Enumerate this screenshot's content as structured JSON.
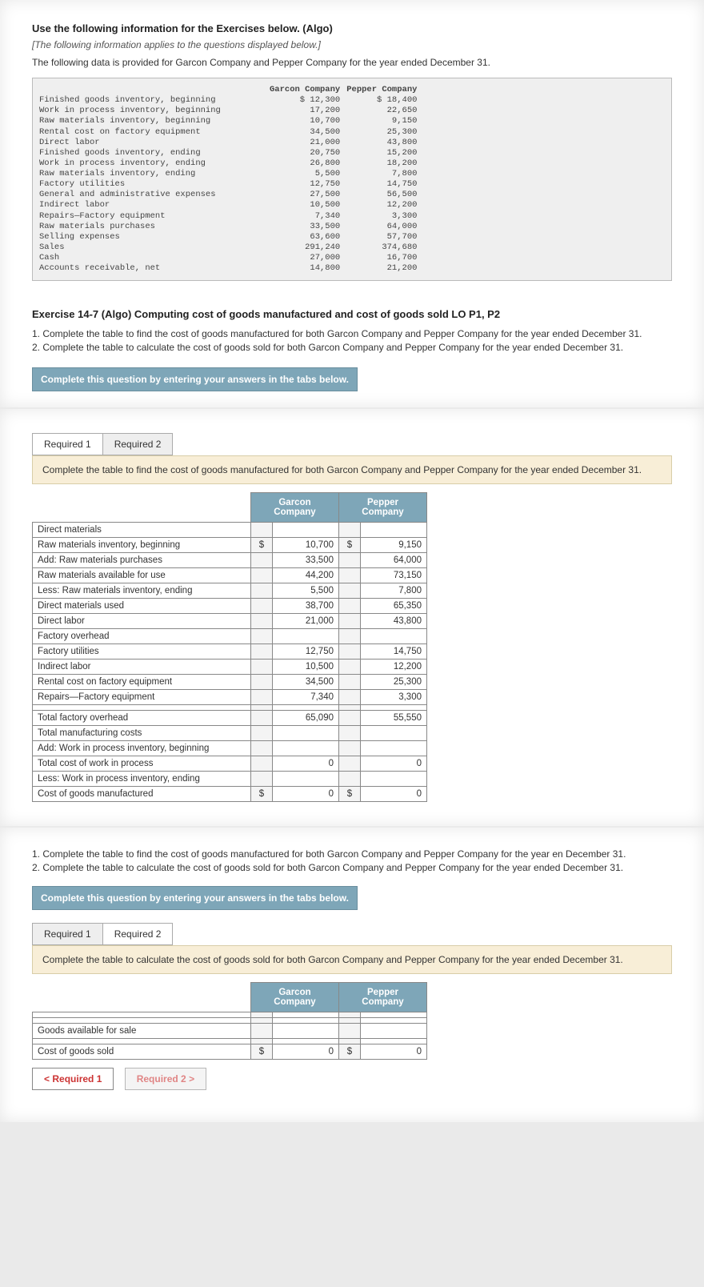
{
  "header": {
    "title": "Use the following information for the Exercises below. (Algo)",
    "note": "[The following information applies to the questions displayed below.]",
    "intro": "The following data is provided for Garcon Company and Pepper Company for the year ended December 31."
  },
  "mono": {
    "col1": "Garcon Company",
    "col2": "Pepper Company",
    "rows": [
      {
        "label": "Finished goods inventory, beginning",
        "g": "$ 12,300",
        "p": "$ 18,400"
      },
      {
        "label": "Work in process inventory, beginning",
        "g": "17,200",
        "p": "22,650"
      },
      {
        "label": "Raw materials inventory, beginning",
        "g": "10,700",
        "p": "9,150"
      },
      {
        "label": "Rental cost on factory equipment",
        "g": "34,500",
        "p": "25,300"
      },
      {
        "label": "Direct labor",
        "g": "21,000",
        "p": "43,800"
      },
      {
        "label": "Finished goods inventory, ending",
        "g": "20,750",
        "p": "15,200"
      },
      {
        "label": "Work in process inventory, ending",
        "g": "26,800",
        "p": "18,200"
      },
      {
        "label": "Raw materials inventory, ending",
        "g": "5,500",
        "p": "7,800"
      },
      {
        "label": "Factory utilities",
        "g": "12,750",
        "p": "14,750"
      },
      {
        "label": "General and administrative expenses",
        "g": "27,500",
        "p": "56,500"
      },
      {
        "label": "Indirect labor",
        "g": "10,500",
        "p": "12,200"
      },
      {
        "label": "Repairs—Factory equipment",
        "g": "7,340",
        "p": "3,300"
      },
      {
        "label": "Raw materials purchases",
        "g": "33,500",
        "p": "64,000"
      },
      {
        "label": "Selling expenses",
        "g": "63,600",
        "p": "57,700"
      },
      {
        "label": "Sales",
        "g": "291,240",
        "p": "374,680"
      },
      {
        "label": "Cash",
        "g": "27,000",
        "p": "16,700"
      },
      {
        "label": "Accounts receivable, net",
        "g": "14,800",
        "p": "21,200"
      }
    ]
  },
  "exercise": {
    "title": "Exercise 14-7 (Algo) Computing cost of goods manufactured and cost of goods sold LO P1, P2",
    "step1": "1. Complete the table to find the cost of goods manufactured for both Garcon Company and Pepper Company for the year ended December 31.",
    "step2": "2. Complete the table to calculate the cost of goods sold for both Garcon Company and Pepper Company for the year ended December 31.",
    "instr": "Complete this question by entering your answers in the tabs below."
  },
  "tabs": {
    "r1": "Required 1",
    "r2": "Required 2"
  },
  "panel1": {
    "text": "Complete the table to find the cost of goods manufactured for both Garcon Company and Pepper Company for the year ended December 31.",
    "colG": "Garcon Company",
    "colP": "Pepper Company",
    "rows": [
      {
        "lbl": "Direct materials",
        "g": "",
        "p": ""
      },
      {
        "lbl": "Raw materials inventory, beginning",
        "cur": "$",
        "g": "10,700",
        "p": "9,150",
        "pcur": "$"
      },
      {
        "lbl": "Add: Raw materials purchases",
        "g": "33,500",
        "p": "64,000"
      },
      {
        "lbl": "Raw materials available for use",
        "g": "44,200",
        "p": "73,150"
      },
      {
        "lbl": "Less: Raw materials inventory, ending",
        "g": "5,500",
        "p": "7,800"
      },
      {
        "lbl": "Direct materials used",
        "g": "38,700",
        "p": "65,350"
      },
      {
        "lbl": "Direct labor",
        "g": "21,000",
        "p": "43,800"
      },
      {
        "lbl": "Factory overhead",
        "g": "",
        "p": ""
      },
      {
        "lbl": "Factory utilities",
        "g": "12,750",
        "p": "14,750"
      },
      {
        "lbl": "Indirect labor",
        "g": "10,500",
        "p": "12,200"
      },
      {
        "lbl": "Rental cost on factory equipment",
        "g": "34,500",
        "p": "25,300"
      },
      {
        "lbl": "Repairs—Factory equipment",
        "g": "7,340",
        "p": "3,300"
      },
      {
        "lbl": "",
        "g": "",
        "p": ""
      },
      {
        "lbl": "Total factory overhead",
        "g": "65,090",
        "p": "55,550"
      },
      {
        "lbl": "Total manufacturing costs",
        "g": "",
        "p": ""
      },
      {
        "lbl": "Add: Work in process inventory, beginning",
        "g": "",
        "p": ""
      },
      {
        "lbl": "Total cost of work in process",
        "g": "0",
        "p": "0"
      },
      {
        "lbl": "Less: Work in process inventory, ending",
        "g": "",
        "p": ""
      },
      {
        "lbl": "Cost of goods manufactured",
        "cur": "$",
        "g": "0",
        "pcur": "$",
        "p": "0"
      }
    ]
  },
  "repeat": {
    "step1": "1. Complete the table to find the cost of goods manufactured for both Garcon Company and Pepper Company for the year en December 31.",
    "step2": "2. Complete the table to calculate the cost of goods sold for both Garcon Company and Pepper Company for the year ended December 31."
  },
  "panel2": {
    "text": "Complete the table to calculate the cost of goods sold for both Garcon Company and Pepper Company for the year ended December 31.",
    "colG": "Garcon Company",
    "colP": "Pepper Company",
    "rows": [
      {
        "lbl": "",
        "g": "",
        "p": ""
      },
      {
        "lbl": "",
        "g": "",
        "p": ""
      },
      {
        "lbl": "Goods available for sale",
        "g": "",
        "p": ""
      },
      {
        "lbl": "",
        "g": "",
        "p": ""
      },
      {
        "lbl": "Cost of goods sold",
        "cur": "$",
        "g": "0",
        "pcur": "$",
        "p": "0"
      }
    ]
  },
  "nav": {
    "prev": "Required 1",
    "next": "Required 2"
  }
}
